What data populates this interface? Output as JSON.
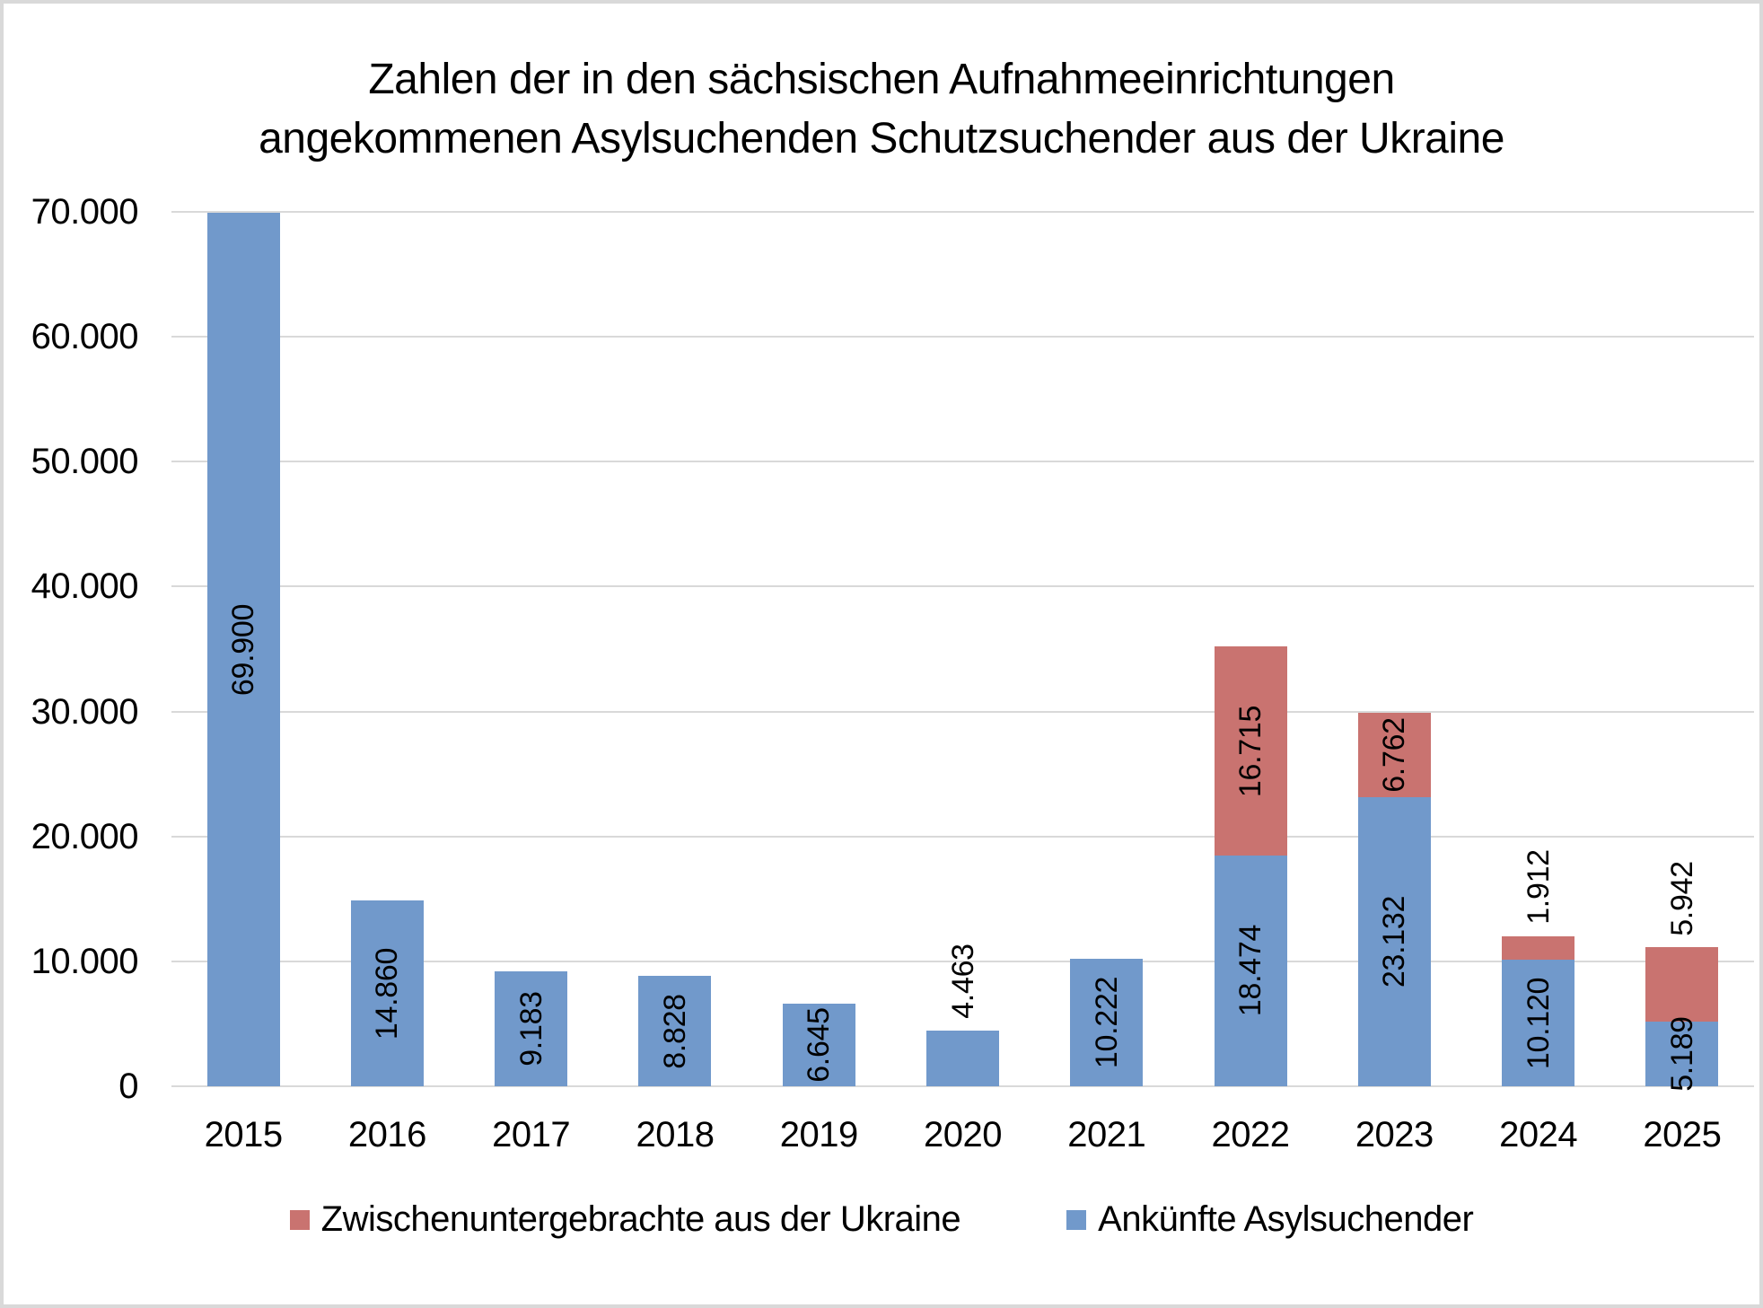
{
  "chart_data": {
    "type": "bar",
    "stacked": true,
    "title_lines": [
      "Zahlen der in den sächsischen Aufnahmeeinrichtungen",
      "angekommenen Asylsuchenden Schutzsuchender aus der Ukraine"
    ],
    "categories": [
      "2015",
      "2016",
      "2017",
      "2018",
      "2019",
      "2020",
      "2021",
      "2022",
      "2023",
      "2024",
      "2025"
    ],
    "series": [
      {
        "name": "Ankünfte Asylsuchender",
        "color": "#7199CB",
        "values": [
          69900,
          14860,
          9183,
          8828,
          6645,
          4463,
          10222,
          18474,
          23132,
          10120,
          5189
        ],
        "labels": [
          "69.900",
          "14.860",
          "9.183",
          "8.828",
          "6.645",
          "4.463",
          "10.222",
          "18.474",
          "23.132",
          "10.120",
          "5.189"
        ],
        "label_pos": [
          "in",
          "in",
          "in",
          "in",
          "in",
          "out",
          "in",
          "in",
          "in",
          "in",
          "in"
        ]
      },
      {
        "name": "Zwischenuntergebrachte aus der Ukraine",
        "color": "#C97370",
        "values": [
          null,
          null,
          null,
          null,
          null,
          null,
          null,
          16715,
          6762,
          1912,
          5942
        ],
        "labels": [
          null,
          null,
          null,
          null,
          null,
          null,
          null,
          "16.715",
          "6.762",
          "1.912",
          "5.942"
        ],
        "label_pos": [
          null,
          null,
          null,
          null,
          null,
          null,
          null,
          "in",
          "in",
          "out",
          "out"
        ]
      }
    ],
    "xlabel": "",
    "ylabel": "",
    "ylim": [
      0,
      70000
    ],
    "ytick_interval": 10000,
    "ytick_labels": [
      "0",
      "10.000",
      "20.000",
      "30.000",
      "40.000",
      "50.000",
      "60.000",
      "70.000"
    ],
    "grid": true,
    "legend_position": "bottom",
    "label_rotation": "vertical-bottom-to-top"
  },
  "legend": {
    "items": [
      {
        "label": "Zwischenuntergebrachte aus der Ukraine",
        "color": "#C97370"
      },
      {
        "label": "Ankünfte Asylsuchender",
        "color": "#7199CB"
      }
    ]
  },
  "colors": {
    "bar_blue": "#7199CB",
    "bar_red": "#C97370",
    "gridline": "#d9d9d9",
    "frame_border": "#d9d9d9",
    "text": "#000000",
    "background": "#ffffff"
  }
}
